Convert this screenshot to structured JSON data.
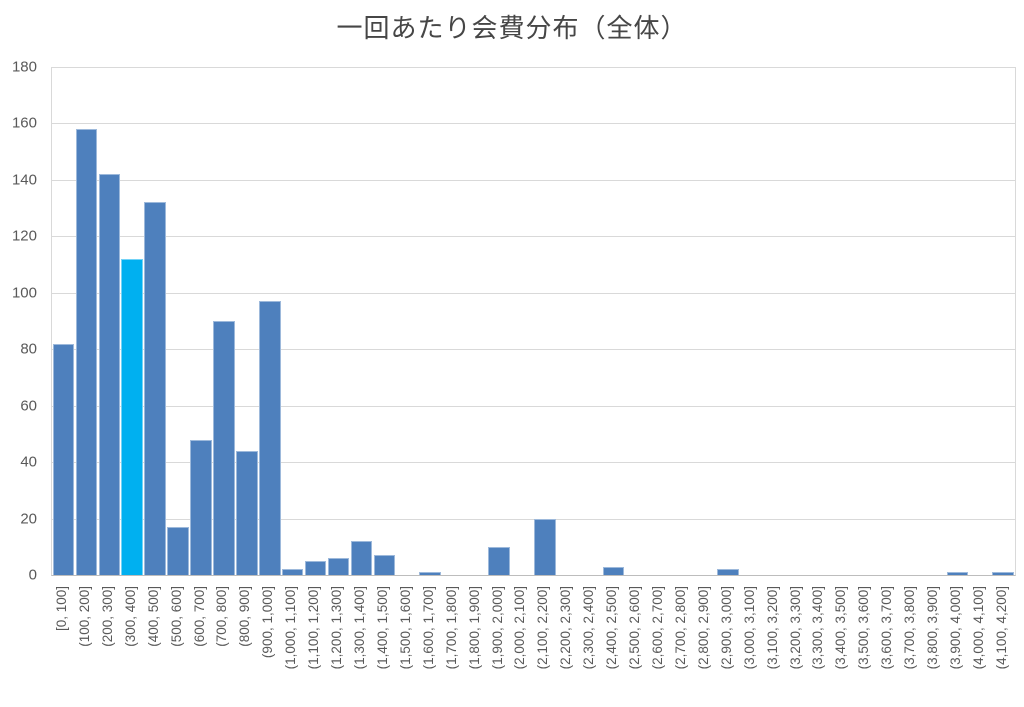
{
  "title": "一回あたり会費分布（全体）",
  "chart_data": {
    "type": "bar",
    "title": "一回あたり会費分布（全体）",
    "categories": [
      "[0, 100]",
      "(100, 200]",
      "(200, 300]",
      "(300, 400]",
      "(400, 500]",
      "(500, 600]",
      "(600, 700]",
      "(700, 800]",
      "(800, 900]",
      "(900, 1,000]",
      "(1,000, 1,100]",
      "(1,100, 1,200]",
      "(1,200, 1,300]",
      "(1,300, 1,400]",
      "(1,400, 1,500]",
      "(1,500, 1,600]",
      "(1,600, 1,700]",
      "(1,700, 1,800]",
      "(1,800, 1,900]",
      "(1,900, 2,000]",
      "(2,000, 2,100]",
      "(2,100, 2,200]",
      "(2,200, 2,300]",
      "(2,300, 2,400]",
      "(2,400, 2,500]",
      "(2,500, 2,600]",
      "(2,600, 2,700]",
      "(2,700, 2,800]",
      "(2,800, 2,900]",
      "(2,900, 3,000]",
      "(3,000, 3,100]",
      "(3,100, 3,200]",
      "(3,200, 3,300]",
      "(3,300, 3,400]",
      "(3,400, 3,500]",
      "(3,500, 3,600]",
      "(3,600, 3,700]",
      "(3,700, 3,800]",
      "(3,800, 3,900]",
      "(3,900, 4,000]",
      "(4,000, 4,100]",
      "(4,100, 4,200]"
    ],
    "values": [
      82,
      158,
      142,
      112,
      132,
      17,
      48,
      90,
      44,
      97,
      2,
      5,
      6,
      12,
      7,
      0,
      1,
      0,
      0,
      10,
      0,
      20,
      0,
      0,
      3,
      0,
      0,
      0,
      0,
      2,
      0,
      0,
      0,
      0,
      0,
      0,
      0,
      0,
      0,
      1,
      0,
      1
    ],
    "highlight": {
      "index": 3,
      "category": "(300, 400]",
      "color": "#00b0f0"
    },
    "bar_color": "#4e80bd",
    "xlabel": "",
    "ylabel": "",
    "ylim": [
      0,
      180
    ],
    "yticks": [
      0,
      20,
      40,
      60,
      80,
      100,
      120,
      140,
      160,
      180
    ],
    "grid": true,
    "gridline_color": "#d9d9d9",
    "tick_label_color": "#595959",
    "legend_position": "none"
  }
}
